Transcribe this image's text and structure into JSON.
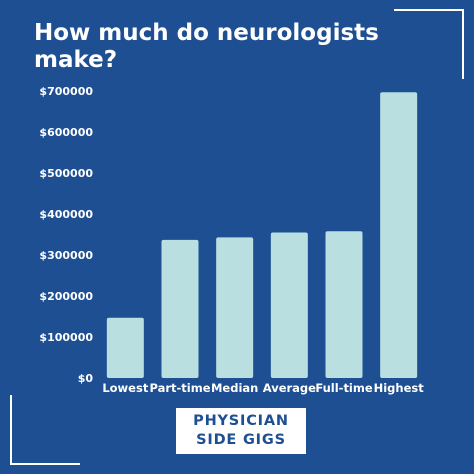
{
  "title": "How much do neurologists make?",
  "logo": {
    "line1": "PHYSICIAN",
    "line2": "SIDE GIGS"
  },
  "colors": {
    "background": "#1d4f92",
    "bar": "#b9dfe0",
    "text": "#ffffff"
  },
  "chart_data": {
    "type": "bar",
    "title": "How much do neurologists make?",
    "xlabel": "",
    "ylabel": "",
    "categories": [
      "Lowest",
      "Part-time",
      "Median",
      "Average",
      "Full-time",
      "Highest"
    ],
    "values": [
      147000,
      337000,
      343000,
      355000,
      358000,
      697000
    ],
    "ylim": [
      0,
      700000
    ],
    "yticks": [
      0,
      100000,
      200000,
      300000,
      400000,
      500000,
      600000,
      700000
    ],
    "ytick_labels": [
      "$0",
      "$100000",
      "$200000",
      "$300000",
      "$400000",
      "$500000",
      "$600000",
      "$700000"
    ],
    "grid": false,
    "legend": "none"
  }
}
